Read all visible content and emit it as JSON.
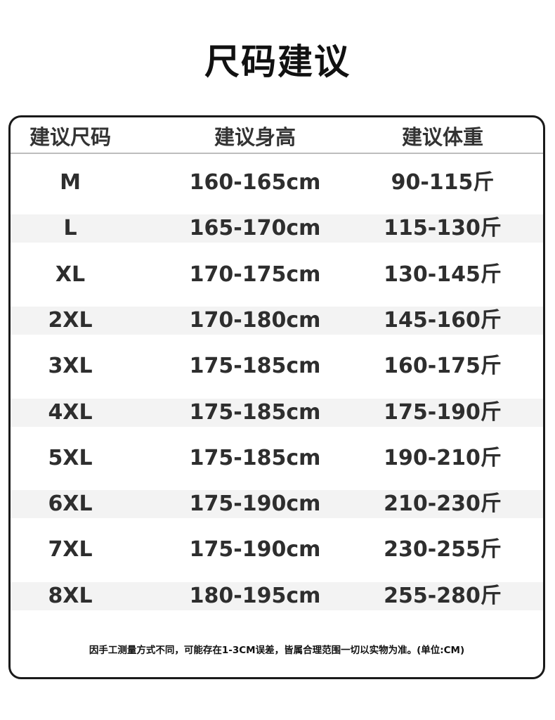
{
  "title": "尺码建议",
  "headers": [
    "建议尺码",
    "建议身高",
    "建议体重"
  ],
  "rows": [
    [
      "M",
      "160-165cm",
      "90-115斤"
    ],
    [
      "L",
      "165-170cm",
      "115-130斤"
    ],
    [
      "XL",
      "170-175cm",
      "130-145斤"
    ],
    [
      "2XL",
      "170-180cm",
      "145-160斤"
    ],
    [
      "3XL",
      "175-185cm",
      "160-175斤"
    ],
    [
      "4XL",
      "175-185cm",
      "175-190斤"
    ],
    [
      "5XL",
      "175-185cm",
      "190-210斤"
    ],
    [
      "6XL",
      "175-190cm",
      "210-230斤"
    ],
    [
      "7XL",
      "175-190cm",
      "230-255斤"
    ],
    [
      "8XL",
      "180-195cm",
      "255-280斤"
    ]
  ],
  "note": "因手工测量方式不同，可能存在1-3CM误差，皆属合理范围一切以实物为准。(单位:CM)",
  "colors": {
    "border": "#1a1a1a",
    "shade": "#f3f3f3",
    "text": "#2e2e2e"
  }
}
